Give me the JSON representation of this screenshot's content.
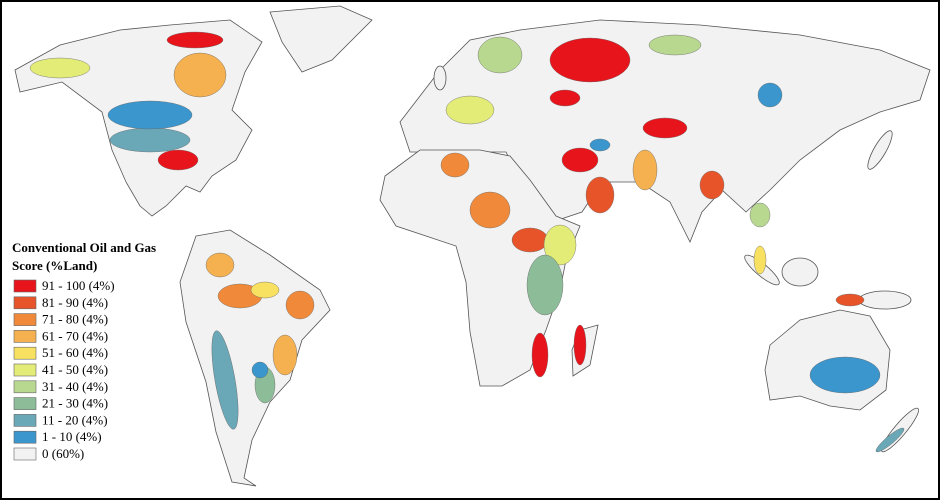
{
  "legend": {
    "title_lines": [
      "Conventional Oil and Gas",
      "Score (%Land)"
    ],
    "items": [
      {
        "label": "91 - 100 (4%)",
        "color": "#e8141c"
      },
      {
        "label": "81 - 90 (4%)",
        "color": "#e8542a"
      },
      {
        "label": "71 - 80 (4%)",
        "color": "#f08a3a"
      },
      {
        "label": "61 - 70 (4%)",
        "color": "#f5b050"
      },
      {
        "label": "51 - 60 (4%)",
        "color": "#f8e060"
      },
      {
        "label": "41 - 50 (4%)",
        "color": "#e4ec78"
      },
      {
        "label": "31 - 40 (4%)",
        "color": "#b8d890"
      },
      {
        "label": "21 - 30 (4%)",
        "color": "#8cbc98"
      },
      {
        "label": "11 - 20 (4%)",
        "color": "#6aa8b8"
      },
      {
        "label": "1 - 10 (4%)",
        "color": "#3a96cc"
      },
      {
        "label": "0 (60%)",
        "color": "#f2f2f2"
      }
    ]
  }
}
